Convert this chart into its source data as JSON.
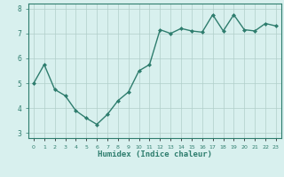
{
  "x": [
    0,
    1,
    2,
    3,
    4,
    5,
    6,
    7,
    8,
    9,
    10,
    11,
    12,
    13,
    14,
    15,
    16,
    17,
    18,
    19,
    20,
    21,
    22,
    23
  ],
  "y": [
    5.0,
    5.75,
    4.75,
    4.5,
    3.9,
    3.6,
    3.35,
    3.75,
    4.3,
    4.65,
    5.5,
    5.75,
    7.15,
    7.0,
    7.2,
    7.1,
    7.05,
    7.75,
    7.1,
    7.75,
    7.15,
    7.1,
    7.4,
    7.3
  ],
  "xlabel": "Humidex (Indice chaleur)",
  "ylim": [
    2.8,
    8.2
  ],
  "xlim": [
    -0.5,
    23.5
  ],
  "yticks": [
    3,
    4,
    5,
    6,
    7,
    8
  ],
  "xtick_labels": [
    "0",
    "1",
    "2",
    "3",
    "4",
    "5",
    "6",
    "7",
    "8",
    "9",
    "10",
    "11",
    "12",
    "13",
    "14",
    "15",
    "16",
    "17",
    "18",
    "19",
    "20",
    "21",
    "22",
    "23"
  ],
  "line_color": "#2e7d6e",
  "marker_color": "#2e7d6e",
  "bg_color": "#d8f0ee",
  "grid_color": "#b0ceca",
  "axis_color": "#2e7d6e",
  "tick_label_color": "#2e7d6e",
  "xlabel_color": "#2e7d6e",
  "marker": "D",
  "marker_size": 2.0,
  "line_width": 1.0
}
